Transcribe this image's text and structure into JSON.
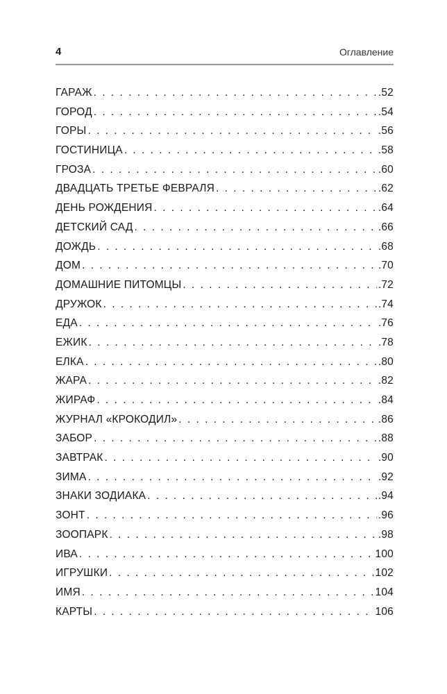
{
  "header": {
    "page_number": "4",
    "section": "Оглавление"
  },
  "toc": [
    {
      "title": "ГАРАЖ",
      "page": ".52"
    },
    {
      "title": "ГОРОД",
      "page": ".54"
    },
    {
      "title": "ГОРЫ",
      "page": ".56"
    },
    {
      "title": "ГОСТИНИЦА",
      "page": ".58"
    },
    {
      "title": "ГРОЗА",
      "page": ".60"
    },
    {
      "title": "ДВАДЦАТЬ ТРЕТЬЕ ФЕВРАЛЯ",
      "page": ".62"
    },
    {
      "title": "ДЕНЬ РОЖДЕНИЯ",
      "page": ".64"
    },
    {
      "title": "ДЕТСКИЙ САД",
      "page": ".66"
    },
    {
      "title": "ДОЖДЬ",
      "page": ".68"
    },
    {
      "title": "ДОМ",
      "page": ".70"
    },
    {
      "title": "ДОМАШНИЕ ПИТОМЦЫ",
      "page": ".72"
    },
    {
      "title": "ДРУЖОК",
      "page": ".74"
    },
    {
      "title": "ЕДА",
      "page": ".76"
    },
    {
      "title": "ЕЖИК",
      "page": ".78"
    },
    {
      "title": "ЕЛКА",
      "page": ".80"
    },
    {
      "title": "ЖАРА",
      "page": ".82"
    },
    {
      "title": "ЖИРАФ",
      "page": ".84"
    },
    {
      "title": "ЖУРНАЛ «КРОКОДИЛ»",
      "page": ".86"
    },
    {
      "title": "ЗАБОР",
      "page": ".88"
    },
    {
      "title": "ЗАВТРАК",
      "page": ".90"
    },
    {
      "title": "ЗИМА",
      "page": ".92"
    },
    {
      "title": "ЗНАКИ ЗОДИАКА",
      "page": ".94"
    },
    {
      "title": "ЗОНТ",
      "page": ".96"
    },
    {
      "title": "ЗООПАРК",
      "page": ".98"
    },
    {
      "title": "ИВА",
      "page": "100"
    },
    {
      "title": "ИГРУШКИ",
      "page": "102"
    },
    {
      "title": "ИМЯ",
      "page": "104"
    },
    {
      "title": "КАРТЫ",
      "page": "106"
    }
  ]
}
